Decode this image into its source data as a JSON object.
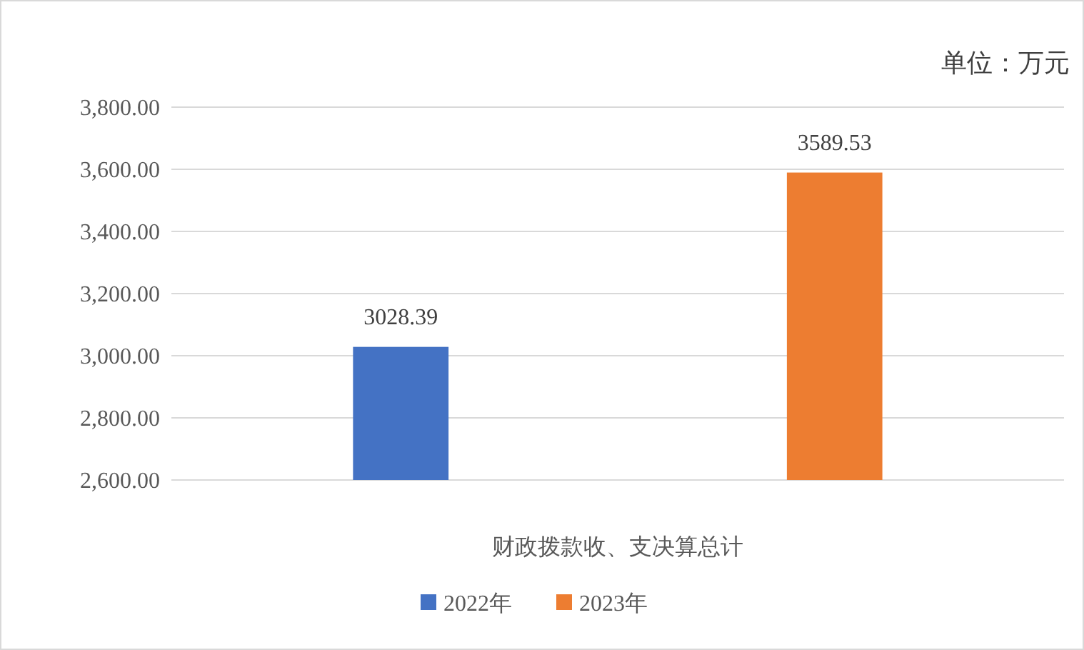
{
  "chart_data": {
    "type": "bar",
    "categories": [
      "财政拨款收、支决算总计"
    ],
    "series": [
      {
        "name": "2022年",
        "color": "#4472c4",
        "values": [
          3028.39
        ]
      },
      {
        "name": "2023年",
        "color": "#ed7d31",
        "values": [
          3589.53
        ]
      }
    ],
    "ylim": [
      2600,
      3800
    ],
    "yticks": [
      {
        "value": 2600,
        "label": "2,600.00"
      },
      {
        "value": 2800,
        "label": "2,800.00"
      },
      {
        "value": 3000,
        "label": "3,000.00"
      },
      {
        "value": 3200,
        "label": "3,200.00"
      },
      {
        "value": 3400,
        "label": "3,400.00"
      },
      {
        "value": 3600,
        "label": "3,600.00"
      },
      {
        "value": 3800,
        "label": "3,800.00"
      }
    ],
    "grid": "y",
    "data_labels": true,
    "legend": "bottom",
    "annotations": [
      "单位：万元"
    ]
  }
}
